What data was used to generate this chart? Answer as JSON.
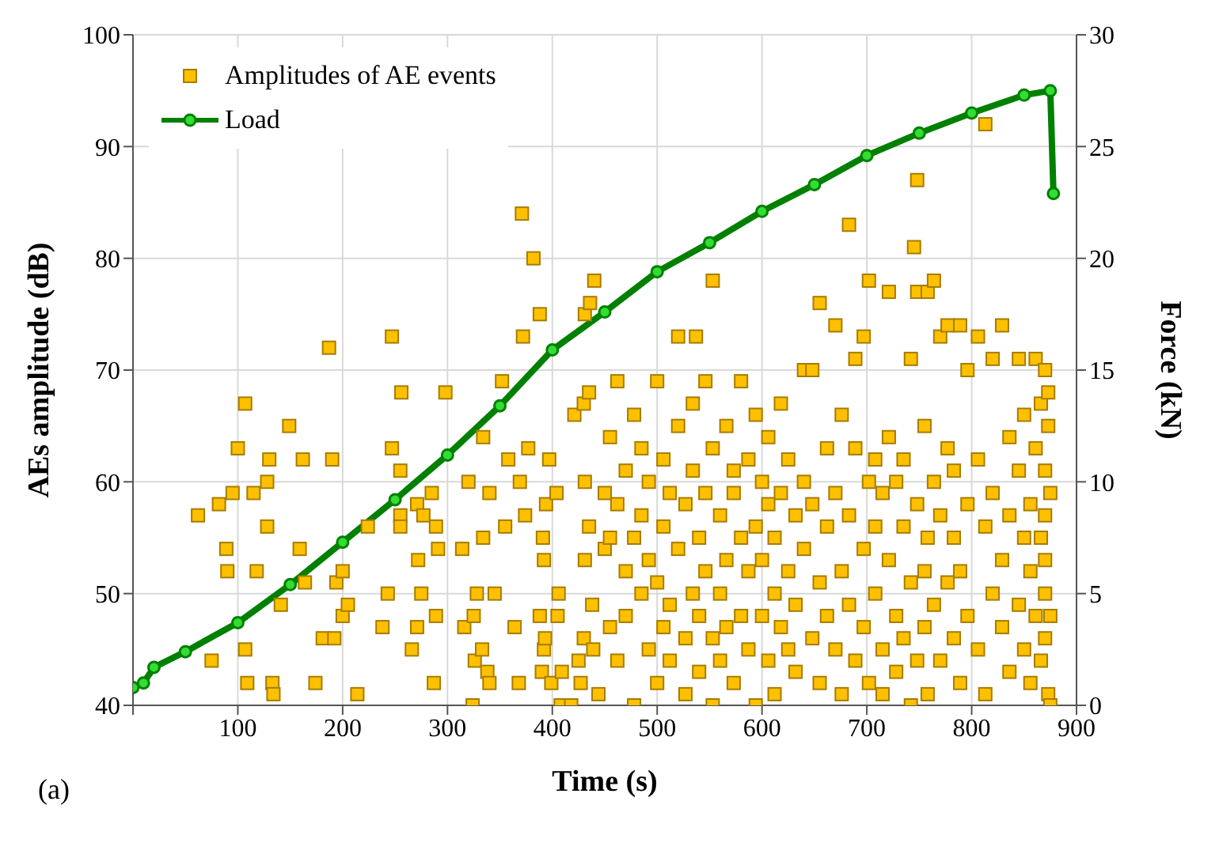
{
  "chart_data": {
    "type": "scatter",
    "xlabel": "Time (s)",
    "ylabel": "AEs amplitude (dB)",
    "y2label": "Force (kN)",
    "annotations": [
      "(a)"
    ],
    "xlim": [
      0,
      900
    ],
    "xticks": [
      {
        "value": 0,
        "label": null
      },
      100,
      200,
      300,
      400,
      500,
      600,
      700,
      800,
      900
    ],
    "ylim": [
      40,
      100
    ],
    "yticks": [
      40,
      50,
      60,
      70,
      80,
      90,
      100
    ],
    "y2lim": [
      0,
      30
    ],
    "y2ticks": [
      0,
      5,
      10,
      15,
      20,
      25,
      30
    ],
    "grid": true,
    "legend": "top left",
    "series": [
      {
        "type": "scatter",
        "name": "Amplitudes of AE events",
        "color": "#ffc000",
        "marker": "square",
        "x": [
          62,
          75,
          82,
          89,
          90,
          95,
          100,
          107,
          107,
          109,
          115,
          118,
          128,
          128,
          130,
          133,
          134,
          141,
          149,
          159,
          162,
          164,
          174,
          181,
          187,
          190,
          192,
          194,
          200,
          200,
          205,
          214,
          224,
          238,
          243,
          247,
          247,
          255,
          255,
          255,
          256,
          266,
          271,
          271,
          272,
          275,
          277,
          285,
          287,
          289,
          289,
          291,
          298,
          314,
          316,
          320,
          324,
          325,
          326,
          328,
          333,
          334,
          334,
          338,
          340,
          340,
          345,
          352,
          355,
          358,
          364,
          368,
          369,
          371,
          372,
          374,
          377,
          382,
          388,
          388,
          390,
          391,
          392,
          392,
          393,
          394,
          397,
          399,
          404,
          405,
          406,
          408,
          409,
          418,
          421,
          425,
          427,
          430,
          430,
          431,
          431,
          431,
          435,
          435,
          436,
          438,
          439,
          440,
          444,
          450,
          450,
          455,
          455,
          455,
          462,
          462,
          462,
          470,
          470,
          470,
          478,
          478,
          478,
          485,
          485,
          485,
          492,
          492,
          492,
          500,
          500,
          500,
          506,
          506,
          506,
          512,
          512,
          512,
          520,
          520,
          520,
          527,
          527,
          527,
          534,
          534,
          534,
          537,
          540,
          540,
          540,
          546,
          546,
          546,
          553,
          553,
          553,
          553,
          560,
          560,
          560,
          566,
          566,
          566,
          573,
          573,
          573,
          580,
          580,
          580,
          587,
          587,
          587,
          594,
          594,
          594,
          600,
          600,
          600,
          606,
          606,
          606,
          612,
          612,
          612,
          618,
          618,
          618,
          625,
          625,
          625,
          632,
          632,
          632,
          640,
          640,
          640,
          648,
          648,
          648,
          655,
          655,
          655,
          662,
          662,
          662,
          670,
          670,
          670,
          676,
          676,
          676,
          683,
          683,
          683,
          689,
          689,
          689,
          697,
          697,
          697,
          702,
          702,
          702,
          708,
          708,
          708,
          715,
          715,
          715,
          721,
          721,
          721,
          728,
          728,
          728,
          735,
          735,
          735,
          742,
          742,
          742,
          745,
          748,
          748,
          748,
          748,
          755,
          755,
          755,
          758,
          758,
          758,
          764,
          764,
          764,
          770,
          770,
          770,
          777,
          777,
          777,
          783,
          783,
          783,
          789,
          789,
          789,
          796,
          796,
          796,
          806,
          806,
          806,
          813,
          813,
          813,
          820,
          820,
          820,
          829,
          829,
          829,
          836,
          836,
          836,
          845,
          845,
          845,
          850,
          850,
          850,
          856,
          856,
          856,
          861,
          861,
          861,
          866,
          866,
          866,
          870,
          870,
          870,
          870,
          870,
          870,
          873,
          873,
          873,
          875,
          875,
          875
        ],
        "values": [
          57,
          44,
          58,
          54,
          52,
          59,
          63,
          67,
          45,
          42,
          59,
          52,
          60,
          56,
          62,
          42,
          41,
          49,
          65,
          54,
          62,
          51,
          42,
          46,
          72,
          62,
          46,
          51,
          52,
          48,
          49,
          41,
          56,
          47,
          50,
          73,
          63,
          61,
          57,
          56,
          68,
          45,
          58,
          47,
          53,
          50,
          57,
          59,
          42,
          56,
          48,
          54,
          68,
          54,
          47,
          60,
          40,
          48,
          44,
          50,
          45,
          64,
          55,
          43,
          59,
          42,
          50,
          69,
          56,
          62,
          47,
          42,
          60,
          84,
          73,
          57,
          63,
          80,
          75,
          48,
          43,
          55,
          53,
          45,
          46,
          58,
          62,
          42,
          59,
          48,
          50,
          40,
          43,
          40,
          66,
          44,
          42,
          67,
          46,
          60,
          53,
          75,
          68,
          56,
          76,
          49,
          45,
          78,
          41,
          54,
          59,
          64,
          47,
          55,
          69,
          58,
          44,
          52,
          61,
          48,
          66,
          40,
          55,
          57,
          50,
          63,
          45,
          60,
          53,
          69,
          51,
          42,
          56,
          47,
          62,
          59,
          49,
          44,
          73,
          54,
          65,
          46,
          58,
          41,
          61,
          50,
          67,
          73,
          55,
          43,
          48,
          69,
          59,
          52,
          78,
          46,
          63,
          40,
          57,
          50,
          44,
          65,
          53,
          47,
          59,
          42,
          61,
          69,
          55,
          48,
          52,
          62,
          45,
          56,
          40,
          66,
          60,
          48,
          53,
          58,
          44,
          64,
          50,
          55,
          41,
          67,
          47,
          59,
          62,
          52,
          45,
          57,
          43,
          49,
          70,
          54,
          60,
          70,
          46,
          58,
          76,
          51,
          42,
          63,
          48,
          56,
          74,
          59,
          45,
          66,
          52,
          41,
          83,
          57,
          49,
          71,
          44,
          63,
          73,
          54,
          47,
          78,
          60,
          42,
          62,
          50,
          56,
          59,
          45,
          41,
          77,
          53,
          64,
          60,
          48,
          43,
          56,
          62,
          46,
          71,
          51,
          40,
          81,
          87,
          77,
          58,
          44,
          52,
          65,
          47,
          77,
          55,
          41,
          78,
          49,
          60,
          73,
          57,
          44,
          74,
          51,
          63,
          61,
          46,
          55,
          74,
          52,
          42,
          70,
          58,
          48,
          73,
          45,
          62,
          92,
          56,
          41,
          71,
          50,
          59,
          74,
          47,
          53,
          64,
          57,
          43,
          71,
          49,
          61,
          55,
          45,
          66,
          52,
          58,
          42,
          71,
          48,
          63,
          67,
          55,
          44,
          70,
          61,
          50,
          46,
          57,
          53,
          65,
          41,
          68,
          40,
          59,
          48
        ]
      },
      {
        "type": "line",
        "name": "Load",
        "color": "#008000",
        "marker": "circle",
        "axis": "y2",
        "x": [
          0,
          10,
          20,
          50,
          100,
          150,
          200,
          250,
          300,
          350,
          400,
          450,
          500,
          550,
          600,
          650,
          700,
          750,
          800,
          850,
          875,
          878
        ],
        "values": [
          0.8,
          1,
          1.7,
          2.4,
          3.7,
          5.4,
          7.3,
          9.2,
          11.2,
          13.4,
          15.9,
          17.6,
          19.4,
          20.7,
          22.1,
          23.3,
          24.6,
          25.6,
          26.5,
          27.3,
          27.5,
          22.9
        ]
      }
    ]
  }
}
